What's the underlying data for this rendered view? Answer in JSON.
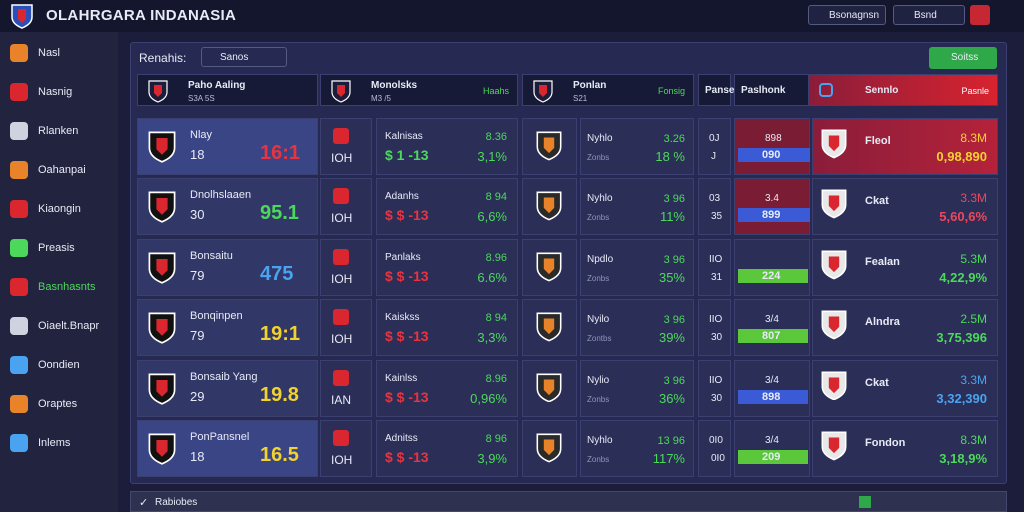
{
  "header": {
    "title": "OLAHRGARA INDANASIA",
    "search": "Bsonagnsn",
    "button": "Bsnd"
  },
  "sidebar": {
    "items": [
      "Nasl",
      "Nasnig",
      "Rlanken",
      "Oahanpai",
      "Kiaongin",
      "Preasis",
      "Basnhasnts",
      "Oiaelt.Bnapr",
      "Oondien",
      "Oraptes",
      "Inlems"
    ],
    "active": 6
  },
  "panel": {
    "filter_label": "Renahis:",
    "filter_value": "Sanos",
    "button": "Soitss"
  },
  "table": {
    "headers": [
      {
        "title": "Paho Aaling",
        "sub": "S3A 5S"
      },
      {
        "title": "Monolsks",
        "sub": "M3 /5",
        "note": "Haahs"
      },
      {
        "title": "Ponlan",
        "sub": "S21",
        "note": "Fonsig"
      },
      {
        "title": "Panse"
      },
      {
        "title": "Paslhonk"
      },
      {
        "title": "Sennlo",
        "note": "Pasnle"
      }
    ],
    "rows": [
      {
        "team": "Nlay",
        "num": "18",
        "score": "16:1",
        "score_color": "#e8343f",
        "code": "IOH",
        "stat_name": "Kalnisas",
        "stat_line": "$ 1 -13",
        "stat_a": "8.36",
        "stat_b": "3,1%",
        "p_name": "Nyhlo",
        "p_sub": "Zonbs",
        "p_a": "3.26",
        "p_b": "18 %",
        "m_a": "0J",
        "m_b": "J",
        "bar_a": "898",
        "bar_b": "090",
        "bar_color": "#3b5bd6",
        "right_name": "Fleol",
        "right_a": "8.3M",
        "right_b": "0,98,890",
        "right_color": "#f2d22e"
      },
      {
        "team": "Dnolhslaaen",
        "num": "30",
        "score": "95.1",
        "score_color": "#4cd85a",
        "code": "IOH",
        "stat_name": "Adanhs",
        "stat_line": "$ $ -13",
        "stat_a": "8 94",
        "stat_b": "6,6%",
        "p_name": "Nyhlo",
        "p_sub": "Zonbs",
        "p_a": "3 96",
        "p_b": "11%",
        "m_a": "03",
        "m_b": "35",
        "bar_a": "3.4",
        "bar_b": "899",
        "bar_color": "#3b5bd6",
        "right_name": "Ckat",
        "right_a": "3.3M",
        "right_b": "5,60,6%",
        "right_color": "#f0475a"
      },
      {
        "team": "Bonsaitu",
        "num": "79",
        "score": "475",
        "score_color": "#4aa3f0",
        "code": "IOH",
        "stat_name": "Panlaks",
        "stat_line": "$ $ -13",
        "stat_a": "8.96",
        "stat_b": "6.6%",
        "p_name": "Npdlo",
        "p_sub": "Zonbs",
        "p_a": "3 96",
        "p_b": "35%",
        "m_a": "IIO",
        "m_b": "31",
        "bar_a": "",
        "bar_b": "224",
        "bar_color": "#5ac83a",
        "right_name": "Fealan",
        "right_a": "5.3M",
        "right_b": "4,22,9%",
        "right_color": "#4cd85a"
      },
      {
        "team": "Bonqinpen",
        "num": "79",
        "score": "19:1",
        "score_color": "#f2d22e",
        "code": "IOH",
        "stat_name": "Kaiskss",
        "stat_line": "$ $ -13",
        "stat_a": "8 94",
        "stat_b": "3,3%",
        "p_name": "Nyilo",
        "p_sub": "Zontbs",
        "p_a": "3 96",
        "p_b": "39%",
        "m_a": "IIO",
        "m_b": "30",
        "bar_a": "3/4",
        "bar_b": "807",
        "bar_color": "#5ac83a",
        "right_name": "Alndra",
        "right_a": "2.5M",
        "right_b": "3,75,396",
        "right_color": "#4cd85a"
      },
      {
        "team": "Bonsaib Yang",
        "num": "29",
        "score": "19.8",
        "score_color": "#f2d22e",
        "code": "IAN",
        "stat_name": "Kainlss",
        "stat_line": "$ $ -13",
        "stat_a": "8.96",
        "stat_b": "0,96%",
        "p_name": "Nylio",
        "p_sub": "Zonbs",
        "p_a": "3 96",
        "p_b": "36%",
        "m_a": "IIO",
        "m_b": "30",
        "bar_a": "3/4",
        "bar_b": "898",
        "bar_color": "#3b5bd6",
        "right_name": "Ckat",
        "right_a": "3.3M",
        "right_b": "3,32,390",
        "right_color": "#4aa3f0"
      },
      {
        "team": "PonPansnel",
        "num": "18",
        "score": "16.5",
        "score_color": "#f2d22e",
        "code": "IOH",
        "stat_name": "Adnitss",
        "stat_line": "$ $ -13",
        "stat_a": "8 96",
        "stat_b": "3,9%",
        "p_name": "Nyhlo",
        "p_sub": "Zonbs",
        "p_a": "13 96",
        "p_b": "117%",
        "m_a": "0I0",
        "m_b": "0I0",
        "bar_a": "3/4",
        "bar_b": "209",
        "bar_color": "#5ac83a",
        "right_name": "Fondon",
        "right_a": "8.3M",
        "right_b": "3,18,9%",
        "right_color": "#4cd85a"
      }
    ]
  },
  "footer": {
    "label": "Rabiobes"
  }
}
